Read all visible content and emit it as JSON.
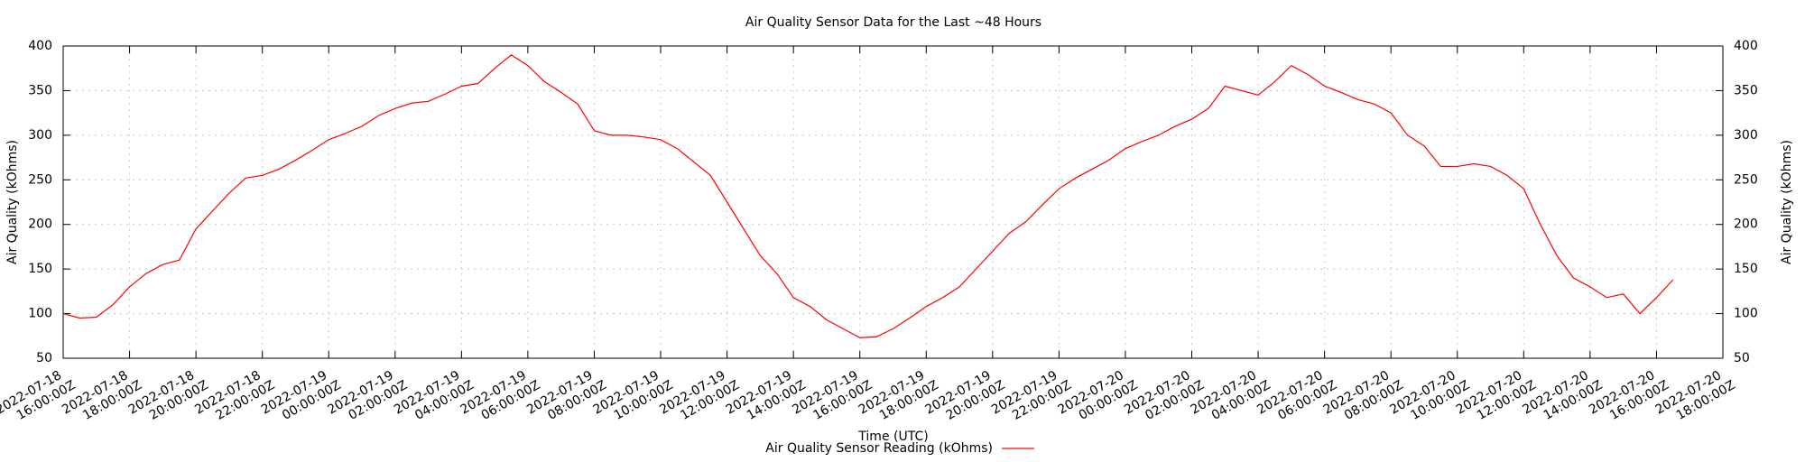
{
  "chart_data": {
    "type": "line",
    "title": "Air Quality Sensor Data for the Last ~48 Hours",
    "xlabel": "Time (UTC)",
    "ylabel": "Air Quality (kOhms)",
    "y2label": "Air Quality (kOhms)",
    "grid": true,
    "legend": "bottom",
    "xlim": [
      "2022-07-18T16:00:00Z",
      "2022-07-20T18:00:00Z"
    ],
    "xticks": [
      {
        "value": "2022-07-18T16:00:00Z",
        "label": "2022-07-18 16:00:00Z"
      },
      {
        "value": "2022-07-18T18:00:00Z",
        "label": "2022-07-18 18:00:00Z"
      },
      {
        "value": "2022-07-18T20:00:00Z",
        "label": "2022-07-18 20:00:00Z"
      },
      {
        "value": "2022-07-18T22:00:00Z",
        "label": "2022-07-18 22:00:00Z"
      },
      {
        "value": "2022-07-19T00:00:00Z",
        "label": "2022-07-19 00:00:00Z"
      },
      {
        "value": "2022-07-19T02:00:00Z",
        "label": "2022-07-19 02:00:00Z"
      },
      {
        "value": "2022-07-19T04:00:00Z",
        "label": "2022-07-19 04:00:00Z"
      },
      {
        "value": "2022-07-19T06:00:00Z",
        "label": "2022-07-19 06:00:00Z"
      },
      {
        "value": "2022-07-19T08:00:00Z",
        "label": "2022-07-19 08:00:00Z"
      },
      {
        "value": "2022-07-19T10:00:00Z",
        "label": "2022-07-19 10:00:00Z"
      },
      {
        "value": "2022-07-19T12:00:00Z",
        "label": "2022-07-19 12:00:00Z"
      },
      {
        "value": "2022-07-19T14:00:00Z",
        "label": "2022-07-19 14:00:00Z"
      },
      {
        "value": "2022-07-19T16:00:00Z",
        "label": "2022-07-19 16:00:00Z"
      },
      {
        "value": "2022-07-19T18:00:00Z",
        "label": "2022-07-19 18:00:00Z"
      },
      {
        "value": "2022-07-19T20:00:00Z",
        "label": "2022-07-19 20:00:00Z"
      },
      {
        "value": "2022-07-19T22:00:00Z",
        "label": "2022-07-19 22:00:00Z"
      },
      {
        "value": "2022-07-20T00:00:00Z",
        "label": "2022-07-20 00:00:00Z"
      },
      {
        "value": "2022-07-20T02:00:00Z",
        "label": "2022-07-20 02:00:00Z"
      },
      {
        "value": "2022-07-20T04:00:00Z",
        "label": "2022-07-20 04:00:00Z"
      },
      {
        "value": "2022-07-20T06:00:00Z",
        "label": "2022-07-20 06:00:00Z"
      },
      {
        "value": "2022-07-20T08:00:00Z",
        "label": "2022-07-20 08:00:00Z"
      },
      {
        "value": "2022-07-20T10:00:00Z",
        "label": "2022-07-20 10:00:00Z"
      },
      {
        "value": "2022-07-20T12:00:00Z",
        "label": "2022-07-20 12:00:00Z"
      },
      {
        "value": "2022-07-20T14:00:00Z",
        "label": "2022-07-20 14:00:00Z"
      },
      {
        "value": "2022-07-20T16:00:00Z",
        "label": "2022-07-20 16:00:00Z"
      },
      {
        "value": "2022-07-20T18:00:00Z",
        "label": "2022-07-20 18:00:00Z"
      }
    ],
    "ylim": [
      50,
      400
    ],
    "yticks": [
      50,
      100,
      150,
      200,
      250,
      300,
      350,
      400
    ],
    "y2lim": [
      50,
      400
    ],
    "y2ticks": [
      50,
      100,
      150,
      200,
      250,
      300,
      350,
      400
    ],
    "x": [
      "2022-07-18T16:00:00Z",
      "2022-07-18T16:30:00Z",
      "2022-07-18T17:00:00Z",
      "2022-07-18T17:30:00Z",
      "2022-07-18T18:00:00Z",
      "2022-07-18T18:30:00Z",
      "2022-07-18T19:00:00Z",
      "2022-07-18T19:30:00Z",
      "2022-07-18T20:00:00Z",
      "2022-07-18T20:30:00Z",
      "2022-07-18T21:00:00Z",
      "2022-07-18T21:30:00Z",
      "2022-07-18T22:00:00Z",
      "2022-07-18T22:30:00Z",
      "2022-07-18T23:00:00Z",
      "2022-07-18T23:30:00Z",
      "2022-07-19T00:00:00Z",
      "2022-07-19T00:30:00Z",
      "2022-07-19T01:00:00Z",
      "2022-07-19T01:30:00Z",
      "2022-07-19T02:00:00Z",
      "2022-07-19T02:30:00Z",
      "2022-07-19T03:00:00Z",
      "2022-07-19T03:30:00Z",
      "2022-07-19T04:00:00Z",
      "2022-07-19T04:30:00Z",
      "2022-07-19T05:00:00Z",
      "2022-07-19T05:30:00Z",
      "2022-07-19T06:00:00Z",
      "2022-07-19T06:30:00Z",
      "2022-07-19T07:00:00Z",
      "2022-07-19T07:30:00Z",
      "2022-07-19T08:00:00Z",
      "2022-07-19T08:30:00Z",
      "2022-07-19T09:00:00Z",
      "2022-07-19T09:30:00Z",
      "2022-07-19T10:00:00Z",
      "2022-07-19T10:30:00Z",
      "2022-07-19T11:00:00Z",
      "2022-07-19T11:30:00Z",
      "2022-07-19T12:00:00Z",
      "2022-07-19T12:30:00Z",
      "2022-07-19T13:00:00Z",
      "2022-07-19T13:30:00Z",
      "2022-07-19T14:00:00Z",
      "2022-07-19T14:30:00Z",
      "2022-07-19T15:00:00Z",
      "2022-07-19T15:30:00Z",
      "2022-07-19T16:00:00Z",
      "2022-07-19T16:30:00Z",
      "2022-07-19T17:00:00Z",
      "2022-07-19T17:30:00Z",
      "2022-07-19T18:00:00Z",
      "2022-07-19T18:30:00Z",
      "2022-07-19T19:00:00Z",
      "2022-07-19T19:30:00Z",
      "2022-07-19T20:00:00Z",
      "2022-07-19T20:30:00Z",
      "2022-07-19T21:00:00Z",
      "2022-07-19T21:30:00Z",
      "2022-07-19T22:00:00Z",
      "2022-07-19T22:30:00Z",
      "2022-07-19T23:00:00Z",
      "2022-07-19T23:30:00Z",
      "2022-07-20T00:00:00Z",
      "2022-07-20T00:30:00Z",
      "2022-07-20T01:00:00Z",
      "2022-07-20T01:30:00Z",
      "2022-07-20T02:00:00Z",
      "2022-07-20T02:30:00Z",
      "2022-07-20T03:00:00Z",
      "2022-07-20T03:30:00Z",
      "2022-07-20T04:00:00Z",
      "2022-07-20T04:30:00Z",
      "2022-07-20T05:00:00Z",
      "2022-07-20T05:30:00Z",
      "2022-07-20T06:00:00Z",
      "2022-07-20T06:30:00Z",
      "2022-07-20T07:00:00Z",
      "2022-07-20T07:30:00Z",
      "2022-07-20T08:00:00Z",
      "2022-07-20T08:30:00Z",
      "2022-07-20T09:00:00Z",
      "2022-07-20T09:30:00Z",
      "2022-07-20T10:00:00Z",
      "2022-07-20T10:30:00Z",
      "2022-07-20T11:00:00Z",
      "2022-07-20T11:30:00Z",
      "2022-07-20T12:00:00Z",
      "2022-07-20T12:30:00Z",
      "2022-07-20T13:00:00Z",
      "2022-07-20T13:30:00Z",
      "2022-07-20T14:00:00Z",
      "2022-07-20T14:30:00Z",
      "2022-07-20T15:00:00Z",
      "2022-07-20T15:30:00Z",
      "2022-07-20T16:00:00Z",
      "2022-07-20T16:30:00Z"
    ],
    "series": [
      {
        "name": "Air Quality Sensor Reading (kOhms)",
        "color": "#ff0000",
        "values": [
          100,
          95,
          96,
          110,
          130,
          145,
          155,
          160,
          195,
          215,
          235,
          252,
          255,
          262,
          272,
          283,
          295,
          302,
          310,
          322,
          330,
          336,
          338,
          346,
          355,
          358,
          375,
          390,
          378,
          360,
          348,
          335,
          305,
          300,
          300,
          298,
          295,
          285,
          270,
          255,
          225,
          195,
          165,
          145,
          118,
          108,
          93,
          83,
          73,
          74,
          83,
          95,
          108,
          118,
          130,
          150,
          170,
          190,
          203,
          222,
          240,
          252,
          262,
          272,
          285,
          293,
          300,
          310,
          318,
          330,
          355,
          350,
          345,
          360,
          378,
          368,
          355,
          348,
          340,
          335,
          325,
          300,
          288,
          265,
          265,
          268,
          265,
          255,
          240,
          200,
          165,
          140,
          130,
          118,
          122,
          100,
          118,
          138
        ]
      }
    ]
  }
}
